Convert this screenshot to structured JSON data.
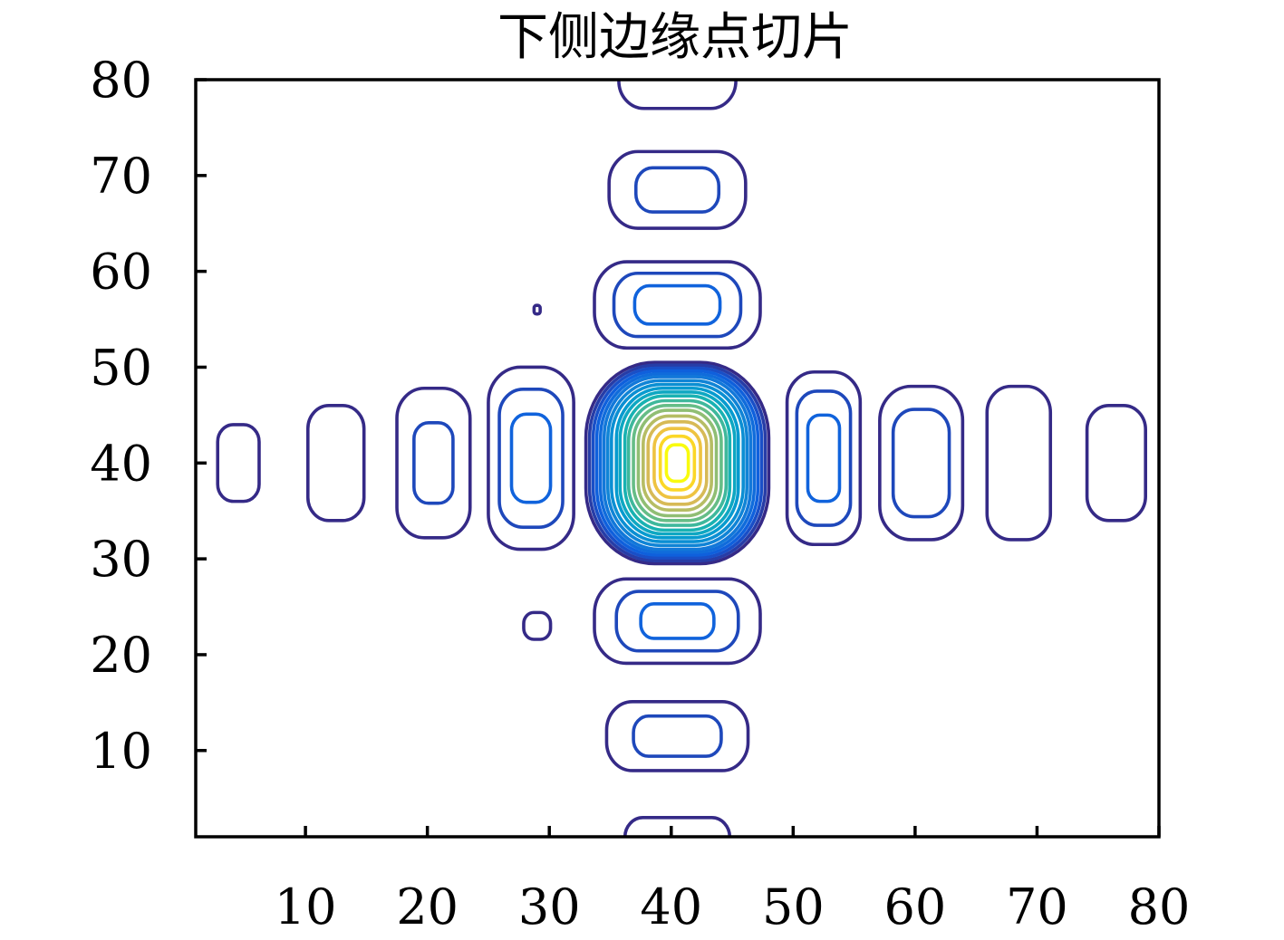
{
  "chart_data": {
    "type": "contour",
    "title": "下侧边缘点切片",
    "xlabel": "",
    "ylabel": "",
    "xlim": [
      1,
      80
    ],
    "ylim": [
      1,
      80
    ],
    "x_ticks": [
      10,
      20,
      30,
      40,
      50,
      60,
      70,
      80
    ],
    "y_ticks": [
      10,
      20,
      30,
      40,
      50,
      60,
      70,
      80
    ],
    "x_tick_labels": [
      "10",
      "20",
      "30",
      "40",
      "50",
      "60",
      "70",
      "80"
    ],
    "y_tick_labels": [
      "10",
      "20",
      "30",
      "40",
      "50",
      "60",
      "70",
      "80"
    ],
    "grid": false,
    "colormap": "parula",
    "peak": {
      "x": 40,
      "y": 40
    },
    "contour_groups": [
      {
        "name": "central-peak",
        "cx": 40.5,
        "cy": 40,
        "rings": [
          [
            7.5,
            10.5
          ],
          [
            7.2,
            10.2
          ],
          [
            6.9,
            9.9
          ],
          [
            6.6,
            9.6
          ],
          [
            6.3,
            9.3
          ],
          [
            6.0,
            9.0
          ],
          [
            5.7,
            8.6
          ],
          [
            5.4,
            8.2
          ],
          [
            5.0,
            7.8
          ],
          [
            4.7,
            7.4
          ],
          [
            4.3,
            7.0
          ],
          [
            4.0,
            6.5
          ],
          [
            3.6,
            6.0
          ],
          [
            3.2,
            5.5
          ],
          [
            2.8,
            4.9
          ],
          [
            2.4,
            4.3
          ],
          [
            1.9,
            3.6
          ],
          [
            1.4,
            2.8
          ],
          [
            0.9,
            1.9
          ]
        ]
      },
      {
        "name": "lobe-above-1",
        "cx": 40.5,
        "cy": 56.5,
        "rings": [
          [
            6.8,
            4.5
          ],
          [
            5.2,
            3.3
          ],
          [
            3.5,
            2.0
          ]
        ]
      },
      {
        "name": "lobe-above-2",
        "cx": 40.5,
        "cy": 68.5,
        "rings": [
          [
            5.6,
            4.0
          ],
          [
            3.4,
            2.3
          ]
        ]
      },
      {
        "name": "lobe-above-3",
        "cx": 40.5,
        "cy": 80.5,
        "rings": [
          [
            4.8,
            3.5
          ]
        ]
      },
      {
        "name": "lobe-below-1",
        "cx": 40.5,
        "cy": 23.5,
        "rings": [
          [
            6.8,
            4.4
          ],
          [
            5.0,
            3.1
          ],
          [
            3.0,
            1.8
          ]
        ]
      },
      {
        "name": "lobe-below-2",
        "cx": 40.5,
        "cy": 11.5,
        "rings": [
          [
            5.8,
            3.6
          ],
          [
            3.6,
            2.1
          ]
        ]
      },
      {
        "name": "lobe-below-3",
        "cx": 40.5,
        "cy": 0.5,
        "rings": [
          [
            4.3,
            2.5
          ]
        ]
      },
      {
        "name": "lobe-left-1",
        "cx": 28.5,
        "cy": 40.5,
        "rings": [
          [
            3.5,
            9.5
          ],
          [
            2.6,
            7.2
          ],
          [
            1.6,
            4.6
          ]
        ]
      },
      {
        "name": "lobe-left-2",
        "cx": 20.5,
        "cy": 40.0,
        "rings": [
          [
            3.0,
            7.8
          ],
          [
            1.6,
            4.2
          ]
        ]
      },
      {
        "name": "lobe-left-3",
        "cx": 12.5,
        "cy": 40.0,
        "rings": [
          [
            2.3,
            6.0
          ]
        ]
      },
      {
        "name": "lobe-left-4",
        "cx": 4.5,
        "cy": 40.0,
        "rings": [
          [
            1.7,
            4.0
          ]
        ]
      },
      {
        "name": "lobe-right-1",
        "cx": 52.5,
        "cy": 40.5,
        "rings": [
          [
            3.0,
            9.0
          ],
          [
            2.2,
            7.0
          ],
          [
            1.3,
            4.5
          ]
        ]
      },
      {
        "name": "lobe-right-2",
        "cx": 60.5,
        "cy": 40.0,
        "rings": [
          [
            3.4,
            8.0
          ],
          [
            2.3,
            5.6
          ]
        ]
      },
      {
        "name": "lobe-right-3",
        "cx": 68.5,
        "cy": 40.0,
        "rings": [
          [
            2.6,
            8.0
          ]
        ]
      },
      {
        "name": "lobe-right-4",
        "cx": 76.5,
        "cy": 40.0,
        "rings": [
          [
            2.4,
            6.0
          ]
        ]
      },
      {
        "name": "spot-upper-left",
        "cx": 29.0,
        "cy": 56.0,
        "rings": [
          [
            0.25,
            0.45
          ]
        ]
      },
      {
        "name": "spot-lower-left",
        "cx": 29.0,
        "cy": 23.0,
        "rings": [
          [
            1.1,
            1.4
          ]
        ]
      }
    ]
  }
}
